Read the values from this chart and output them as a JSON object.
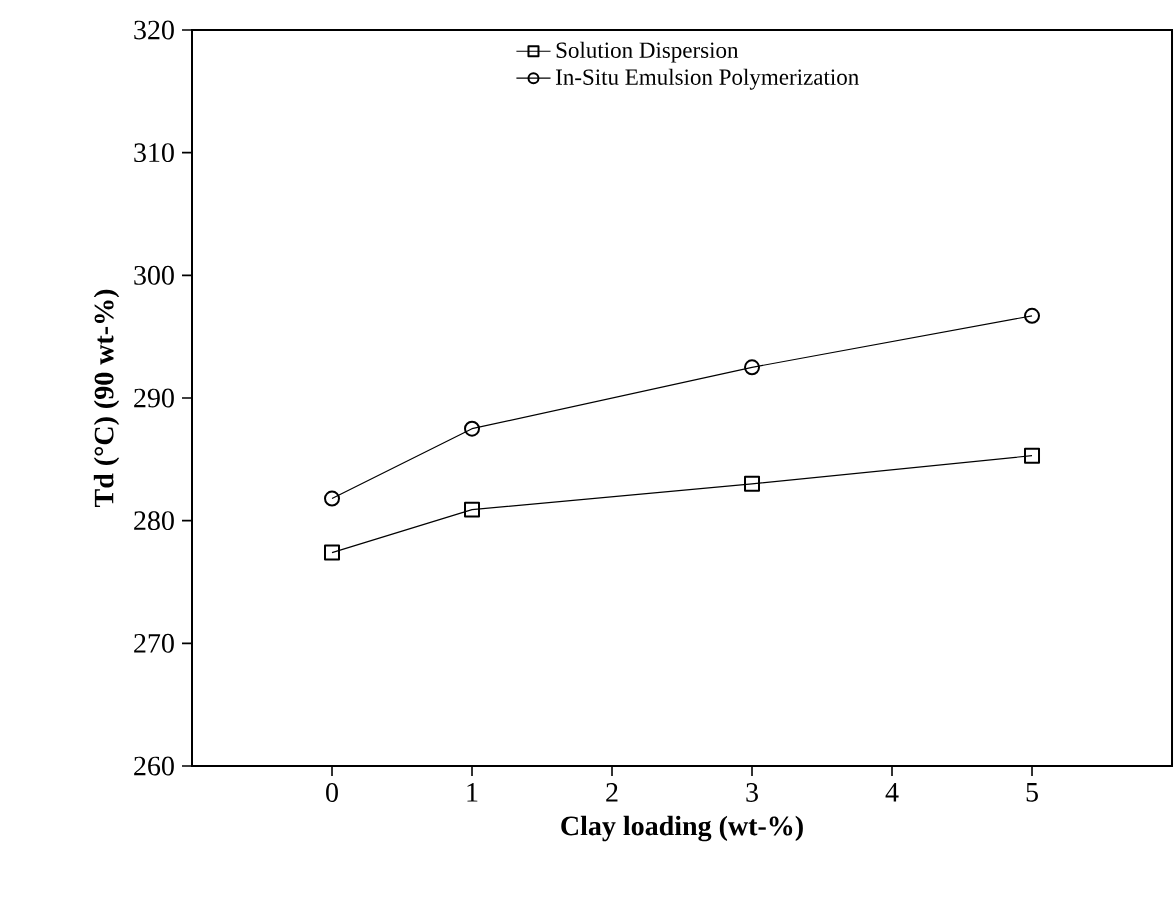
{
  "chart_data": {
    "type": "line",
    "xlabel": "Clay loading (wt-%)",
    "ylabel": "Td (°C) (90 wt-%)",
    "x": [
      0,
      1,
      3,
      5
    ],
    "series": [
      {
        "name": "Solution Dispersion",
        "color": "#000000",
        "marker": "square",
        "values": [
          277.4,
          280.9,
          283.0,
          285.3
        ]
      },
      {
        "name": "In-Situ Emulsion Polymerization",
        "color": "#000000",
        "marker": "circle",
        "values": [
          281.8,
          287.5,
          292.5,
          296.7
        ]
      }
    ],
    "xlim": [
      -1,
      6
    ],
    "xticks": [
      0,
      1,
      2,
      3,
      4,
      5
    ],
    "ylim": [
      260,
      320
    ],
    "yticks": [
      260,
      270,
      280,
      290,
      300,
      310,
      320
    ],
    "grid": false,
    "legend": "top right",
    "line_style": "solid"
  }
}
